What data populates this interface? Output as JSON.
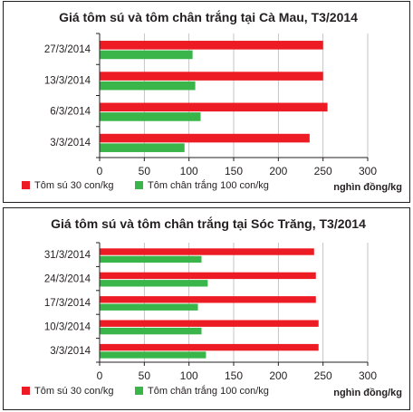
{
  "chart_data": [
    {
      "type": "bar",
      "orientation": "horizontal",
      "title": "Giá tôm sú và tôm chân trắng tại Cà Mau, T3/2014",
      "categories": [
        "27/3/2014",
        "13/3/2014",
        "6/3/2014",
        "3/3/2014"
      ],
      "series": [
        {
          "name": "Tôm sú 30 con/kg",
          "color": "#ed1c24",
          "values": [
            250,
            250,
            255,
            235
          ]
        },
        {
          "name": "Tôm chân trắng 100 con/kg",
          "color": "#39b54a",
          "values": [
            104,
            107,
            113,
            95
          ]
        }
      ],
      "xlim": [
        0,
        300
      ],
      "xticks": [
        0,
        50,
        100,
        150,
        200,
        250,
        300
      ],
      "xticklabels": [
        "0",
        "50",
        "100",
        "150",
        "200",
        "250",
        "300"
      ],
      "xlabel": "nghìn đồng/kg",
      "grid": "vertical",
      "legend_position": "bottom"
    },
    {
      "type": "bar",
      "orientation": "horizontal",
      "title": "Giá tôm sú và tôm chân trắng tại Sóc Trăng, T3/2014",
      "categories": [
        "31/3/2014",
        "24/3/2014",
        "17/3/2014",
        "10/3/2014",
        "3/3/2014"
      ],
      "series": [
        {
          "name": "Tôm sú 30 con/kg",
          "color": "#ed1c24",
          "values": [
            240,
            242,
            242,
            245,
            245
          ]
        },
        {
          "name": "Tôm chân trắng 100 con/kg",
          "color": "#39b54a",
          "values": [
            114,
            121,
            110,
            114,
            119
          ]
        }
      ],
      "xlim": [
        0,
        300
      ],
      "xticks": [
        0,
        50,
        100,
        150,
        200,
        250,
        300
      ],
      "xticklabels": [
        "0",
        "50",
        "100",
        "150",
        "200",
        "250",
        "300"
      ],
      "xlabel": "nghìn đồng/kg",
      "grid": "vertical",
      "legend_position": "bottom"
    }
  ]
}
